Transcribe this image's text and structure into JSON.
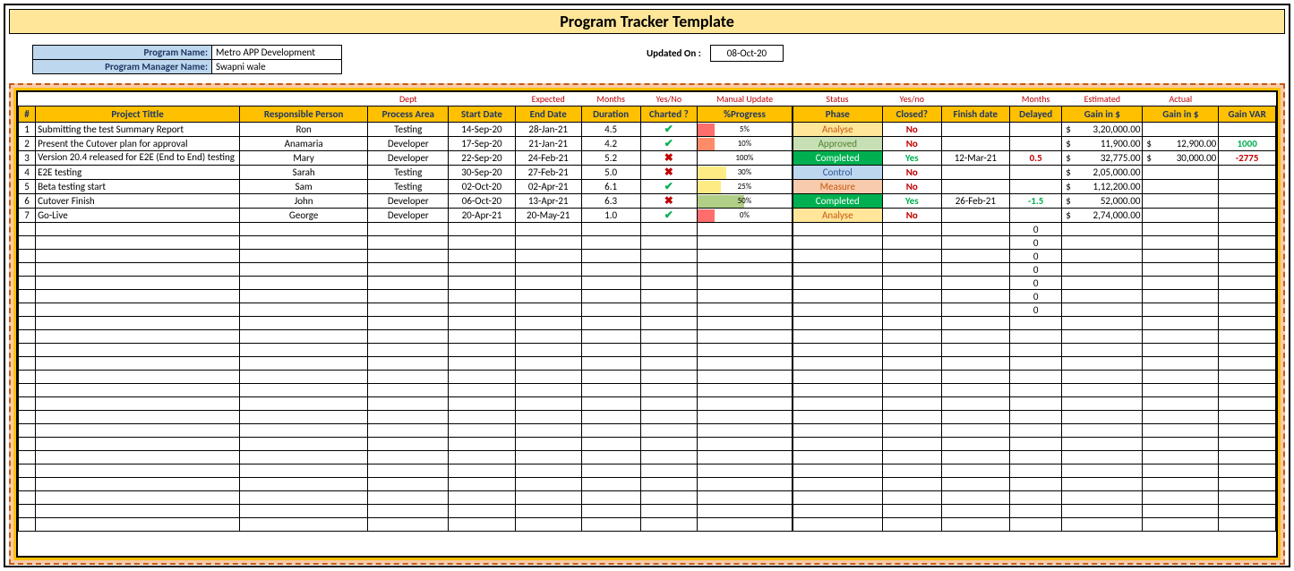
{
  "title": "Program Tracker Template",
  "header": {
    "program_name_label": "Program Name:",
    "program_name": "Metro APP Development",
    "manager_label": "Program Manager Name:",
    "manager": "Swapni wale",
    "updated_label": "Updated On :",
    "updated_date": "08-Oct-20"
  },
  "subheaders": {
    "dept": "Dept",
    "expected": "Expected",
    "months": "Months",
    "yesno": "Yes/No",
    "manual": "Manual Update",
    "status": "Status",
    "yesno2": "Yes/no",
    "months2": "Months",
    "estimated": "Estimated",
    "actual": "Actual"
  },
  "columns": [
    "#",
    "Project Tittle",
    "Responsible Person",
    "Process Area",
    "Start Date",
    "End Date",
    "Duration",
    "Charted ?",
    "%Progress",
    "Phase",
    "Closed?",
    "Finish date",
    "Delayed",
    "Gain in $",
    "Gain in $",
    "Gain VAR"
  ],
  "progress_colors": {
    "red": "#ff6d6d",
    "yellow": "#ffeb84",
    "green": "#63be7b",
    "lime": "#c6e0b4",
    "olive": "#b1cf87"
  },
  "rows": [
    {
      "n": "1",
      "title": "Submitting the test Summary Report",
      "resp": "Ron",
      "area": "Testing",
      "start": "14-Sep-20",
      "end": "28-Jan-21",
      "dur": "4.5",
      "charted": "tick",
      "prog": 5,
      "prog_txt": "5%",
      "prog_bg": "#ff6d6d",
      "phase": "Analyse",
      "phase_cls": "phase-analyse",
      "closed": "No",
      "finish": "",
      "delay": "",
      "gest": "3,20,000.00",
      "gact": "",
      "var": ""
    },
    {
      "n": "2",
      "title": "Present the Cutover plan for approval",
      "resp": "Anamaria",
      "area": "Developer",
      "start": "17-Sep-20",
      "end": "21-Jan-21",
      "dur": "4.2",
      "charted": "tick",
      "prog": 10,
      "prog_txt": "10%",
      "prog_bg": "#ff8b6a",
      "phase": "Approved",
      "phase_cls": "phase-approved",
      "closed": "No",
      "finish": "",
      "delay": "",
      "gest": "11,900.00",
      "gact": "12,900.00",
      "var": "1000",
      "var_cls": "var-pos"
    },
    {
      "n": "3",
      "title": "Version 20.4 released for E2E (End to End) testing",
      "resp": "Mary",
      "area": "Developer",
      "start": "22-Sep-20",
      "end": "24-Feb-21",
      "dur": "5.2",
      "charted": "cross",
      "prog": 100,
      "prog_txt": "100%",
      "prog_bg": "#ffffff",
      "phase": "Completed",
      "phase_cls": "phase-completed",
      "closed": "Yes",
      "finish": "12-Mar-21",
      "delay": "0.5",
      "delay_cls": "delayed-pos",
      "gest": "32,775.00",
      "gact": "30,000.00",
      "var": "-2775",
      "var_cls": "var-neg",
      "wrap": true
    },
    {
      "n": "4",
      "title": "E2E testing",
      "resp": "Sarah",
      "area": "Testing",
      "start": "30-Sep-20",
      "end": "27-Feb-21",
      "dur": "5.0",
      "charted": "cross",
      "prog": 30,
      "prog_txt": "30%",
      "prog_bg": "#ffeb84",
      "phase": "Control",
      "phase_cls": "phase-control",
      "closed": "No",
      "finish": "",
      "delay": "",
      "gest": "2,05,000.00",
      "gact": "",
      "var": ""
    },
    {
      "n": "5",
      "title": "Beta testing start",
      "resp": "Sam",
      "area": "Testing",
      "start": "02-Oct-20",
      "end": "02-Apr-21",
      "dur": "6.1",
      "charted": "tick",
      "prog": 25,
      "prog_txt": "25%",
      "prog_bg": "#ffeb84",
      "phase": "Measure",
      "phase_cls": "phase-measure",
      "closed": "No",
      "finish": "",
      "delay": "",
      "gest": "1,12,200.00",
      "gact": "",
      "var": ""
    },
    {
      "n": "6",
      "title": "Cutover Finish",
      "resp": "John",
      "area": "Developer",
      "start": "06-Oct-20",
      "end": "13-Apr-21",
      "dur": "6.3",
      "charted": "cross",
      "prog": 50,
      "prog_txt": "50%",
      "prog_bg": "#b1cf87",
      "phase": "Completed",
      "phase_cls": "phase-completed",
      "closed": "Yes",
      "finish": "26-Feb-21",
      "delay": "-1.5",
      "delay_cls": "delayed-neg",
      "gest": "52,000.00",
      "gact": "",
      "var": ""
    },
    {
      "n": "7",
      "title": "Go-Live",
      "resp": "George",
      "area": "Developer",
      "start": "20-Apr-21",
      "end": "20-May-21",
      "dur": "1.0",
      "charted": "tick",
      "prog": 0,
      "prog_txt": "0%",
      "prog_bg": "#ff6d6d",
      "phase": "Analyse",
      "phase_cls": "phase-analyse",
      "closed": "No",
      "finish": "",
      "delay": "",
      "gest": "2,74,000.00",
      "gact": "",
      "var": ""
    }
  ],
  "empty_delays": [
    "0",
    "0",
    "0",
    "0",
    "0",
    "0",
    "0"
  ],
  "total_empty_rows": 23
}
